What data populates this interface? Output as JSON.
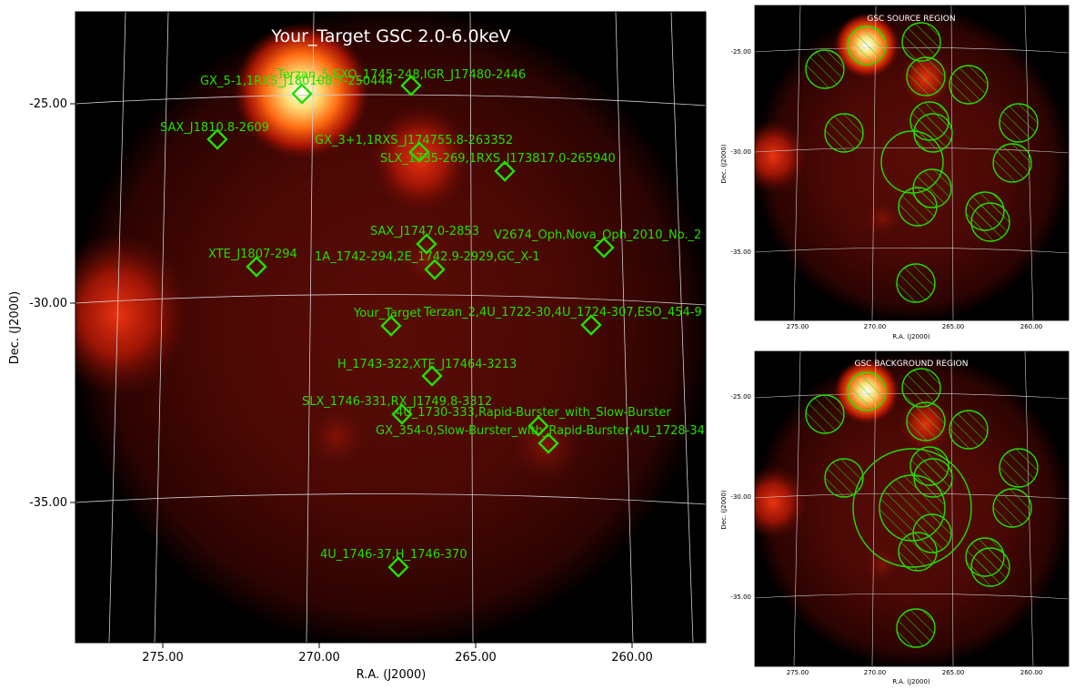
{
  "main": {
    "title": "Your_Target GSC 2.0-6.0keV",
    "xlabel": "R.A. (J2000)",
    "ylabel": "Dec. (J2000)",
    "xticks": [
      "275.00",
      "270.00",
      "265.00",
      "260.00"
    ],
    "yticks": [
      "-25.00",
      "-30.00",
      "-35.00"
    ],
    "sources": [
      "Terzan_5,EXO_1745-248,IGR_J17480-2446",
      "GX_5-1,1RXS_J180108.7-250444",
      "SAX_J1810.8-2609",
      "GX_3+1,1RXS_J174755.8-263352",
      "SLX_1735-269,1RXS_J173817.0-265940",
      "SAX_J1747.0-2853",
      "V2674_Oph,Nova_Oph_2010_No._2",
      "XTE_J1807-294",
      "1A_1742-294,2E_1742.9-2929,GC_X-1",
      "Your_Target",
      "Terzan_2,4U_1722-30,4U_1724-307,ESO_454-9",
      "H_1743-322,XTE_J17464-3213",
      "SLX_1746-331,RX_J1749.8-3312",
      "4U_1730-333,Rapid-Burster_with_Slow-Burster",
      "GX_354-0,Slow-Burster_with_Rapid-Burster,4U_1728-34",
      "4U_1746-37,H_1746-370"
    ]
  },
  "source_panel": {
    "title": "GSC SOURCE REGION",
    "xlabel": "R.A. (J2000)",
    "ylabel": "Dec. (J2000)",
    "xticks": [
      "275.00",
      "270.00",
      "265.00",
      "260.00"
    ],
    "yticks": [
      "-25.00",
      "-30.00",
      "-35.00"
    ]
  },
  "background_panel": {
    "title": "GSC BACKGROUND REGION",
    "xlabel": "R.A. (J2000)",
    "ylabel": "Dec. (J2000)",
    "xticks": [
      "275.00",
      "270.00",
      "265.00",
      "260.00"
    ],
    "yticks": [
      "-25.00",
      "-30.00",
      "-35.00"
    ]
  },
  "colors": {
    "marker": "#22e000",
    "grid": "#cfcfcf",
    "sky": "#000000"
  }
}
